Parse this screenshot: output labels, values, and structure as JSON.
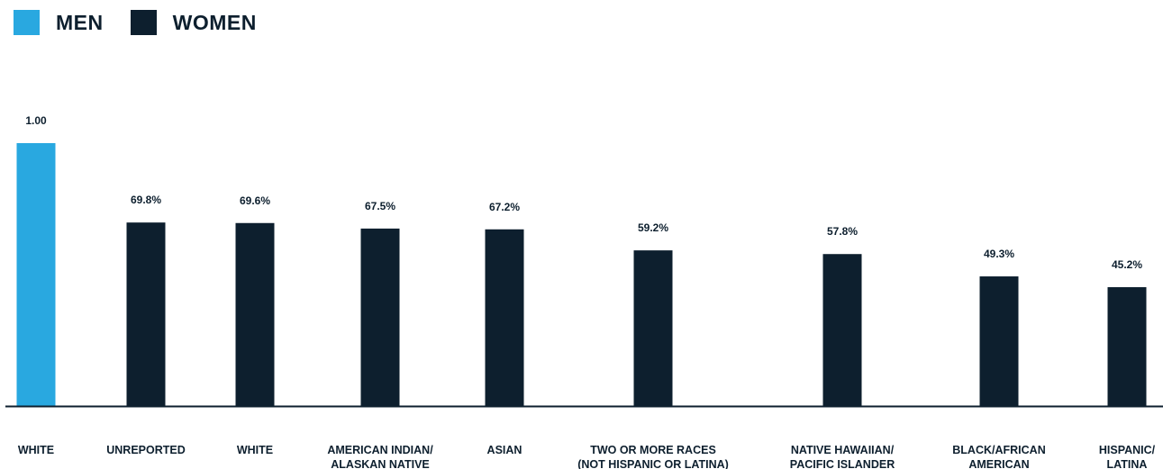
{
  "legend": [
    {
      "label": "MEN",
      "color": "#29a8e0"
    },
    {
      "label": "WOMEN",
      "color": "#0d1f2e"
    }
  ],
  "chart_data": {
    "type": "bar",
    "categories": [
      [
        "WHITE"
      ],
      [
        "UNREPORTED"
      ],
      [
        "WHITE"
      ],
      [
        "AMERICAN INDIAN/",
        "ALASKAN NATIVE"
      ],
      [
        "ASIAN"
      ],
      [
        "TWO OR MORE RACES",
        "(NOT HISPANIC OR LATINA)"
      ],
      [
        "NATIVE HAWAIIAN/",
        "PACIFIC ISLANDER"
      ],
      [
        "BLACK/AFRICAN",
        "AMERICAN"
      ],
      [
        "HISPANIC/",
        "LATINA"
      ]
    ],
    "values": [
      1.0,
      0.698,
      0.696,
      0.675,
      0.672,
      0.592,
      0.578,
      0.493,
      0.452
    ],
    "labels": [
      "1.00",
      "69.8%",
      "69.6%",
      "67.5%",
      "67.2%",
      "59.2%",
      "57.8%",
      "49.3%",
      "45.2%"
    ],
    "groups": [
      "MEN",
      "WOMEN",
      "WOMEN",
      "WOMEN",
      "WOMEN",
      "WOMEN",
      "WOMEN",
      "WOMEN",
      "WOMEN"
    ],
    "ylim": [
      0,
      1.0
    ],
    "grid": false
  }
}
